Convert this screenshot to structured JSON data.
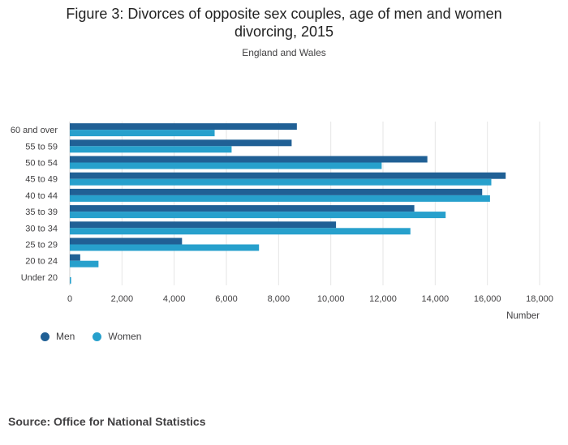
{
  "title_lines": [
    "Figure 3: Divorces of opposite sex couples, age of men and women",
    "divorcing, 2015"
  ],
  "subtitle": "England and Wales",
  "source": "Source: Office for National Statistics",
  "colors": {
    "men": "#206095",
    "women": "#27a0cc"
  },
  "legend": [
    {
      "key": "men",
      "label": "Men"
    },
    {
      "key": "women",
      "label": "Women"
    }
  ],
  "chart_data": {
    "type": "bar",
    "orientation": "horizontal",
    "title": "Figure 3: Divorces of opposite sex couples, age of men and women divorcing, 2015",
    "subtitle": "England and Wales",
    "xlabel": "Number",
    "ylabel": "",
    "xlim": [
      0,
      18000
    ],
    "x_ticks": [
      0,
      2000,
      4000,
      6000,
      8000,
      10000,
      12000,
      14000,
      16000,
      18000
    ],
    "x_tick_labels": [
      "0",
      "2,000",
      "4,000",
      "6,000",
      "8,000",
      "10,000",
      "12,000",
      "14,000",
      "16,000",
      "18,000"
    ],
    "grid": true,
    "legend_position": "bottom-left",
    "categories": [
      "60 and over",
      "55 to 59",
      "50 to 54",
      "45 to 49",
      "40 to 44",
      "35 to 39",
      "30 to 34",
      "25 to 29",
      "20 to 24",
      "Under 20"
    ],
    "series": [
      {
        "name": "Men",
        "values": [
          8700,
          8500,
          13700,
          16700,
          15800,
          13200,
          10200,
          4300,
          400,
          0
        ]
      },
      {
        "name": "Women",
        "values": [
          5550,
          6200,
          11950,
          16150,
          16100,
          14400,
          13050,
          7250,
          1100,
          50
        ]
      }
    ]
  }
}
